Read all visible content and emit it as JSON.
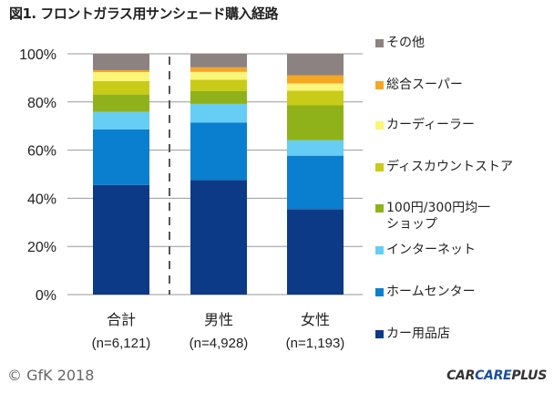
{
  "title": "図1. フロントガラス用サンシェード購入経路",
  "chart_data": {
    "type": "bar",
    "stacked": true,
    "title": "図1. フロントガラス用サンシェード購入経路",
    "xlabel": "",
    "ylabel": "",
    "ylim": [
      0,
      100
    ],
    "yticks": [
      "0%",
      "20%",
      "40%",
      "60%",
      "80%",
      "100%"
    ],
    "categories": [
      {
        "name": "合計",
        "n": "(n=6,121)"
      },
      {
        "name": "男性",
        "n": "(n=4,928)"
      },
      {
        "name": "女性",
        "n": "(n=1,193)"
      }
    ],
    "legend_position": "right",
    "series": [
      {
        "name": "カー用品店",
        "color": "#0d3a86",
        "values": [
          45.5,
          47.6,
          35.5
        ]
      },
      {
        "name": "ホームセンター",
        "color": "#0a7fcf",
        "values": [
          23.1,
          23.8,
          22.2
        ]
      },
      {
        "name": "インターネット",
        "color": "#66cdf5",
        "values": [
          7.3,
          7.8,
          6.4
        ]
      },
      {
        "name": "100円/300円均一\nショップ",
        "color": "#8fb21a",
        "values": [
          7.2,
          5.4,
          14.5
        ]
      },
      {
        "name": "ディスカウントストア",
        "color": "#c8cc18",
        "values": [
          5.6,
          4.6,
          6.1
        ]
      },
      {
        "name": "カーディーラー",
        "color": "#fbf57a",
        "values": [
          3.7,
          3.3,
          3.0
        ]
      },
      {
        "name": "総合スーパー",
        "color": "#f5a623",
        "values": [
          0.8,
          1.9,
          3.4
        ]
      },
      {
        "name": "その他",
        "color": "#8c8282",
        "values": [
          6.8,
          5.6,
          8.9
        ]
      }
    ]
  },
  "footer": {
    "copyright": "© GfK 2018",
    "logo_a": "CAR",
    "logo_b": "CARE",
    "logo_c": "PLUS"
  }
}
